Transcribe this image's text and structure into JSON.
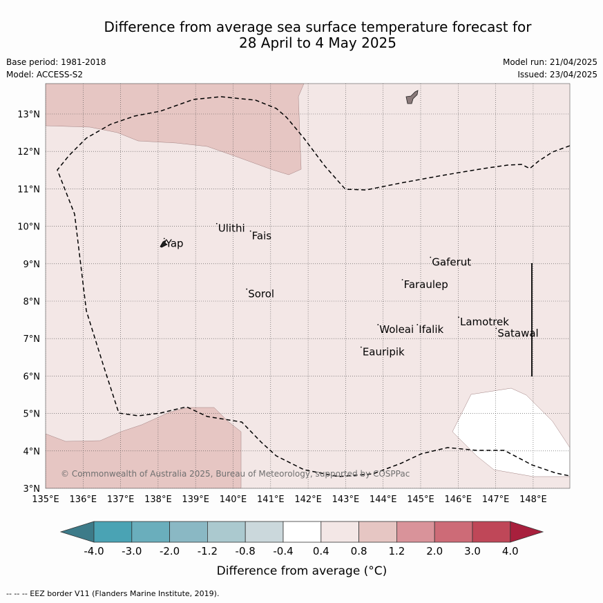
{
  "title_line1": "Difference from average sea surface temperature forecast for",
  "title_line2": "28 April to 4 May 2025",
  "base_period": "Base period: 1981-2018",
  "model": "Model: ACCESS-S2",
  "model_run": "Model run: 21/04/2025",
  "issued": "Issued: 23/04/2025",
  "copyright": "© Commonwealth of Australia 2025, Bureau of Meteorology, supported by COSPPac",
  "footer_note": "-- -- -- EEZ border V11 (Flanders Marine Institute, 2019).",
  "colors": {
    "anom_0_4_0_8": "#f3e7e6",
    "anom_0_8_1_2": "#e6c6c3",
    "neutral": "#ffffff",
    "land": "#8a7a7a"
  },
  "map": {
    "lon_range": [
      135,
      149
    ],
    "lat_range": [
      3,
      13.8
    ],
    "lon_ticks": [
      "135°E",
      "136°E",
      "137°E",
      "138°E",
      "139°E",
      "140°E",
      "141°E",
      "142°E",
      "143°E",
      "144°E",
      "145°E",
      "146°E",
      "147°E",
      "148°E"
    ],
    "lat_ticks": [
      "3°N",
      "4°N",
      "5°N",
      "6°N",
      "7°N",
      "8°N",
      "9°N",
      "10°N",
      "11°N",
      "12°N",
      "13°N"
    ],
    "places": [
      {
        "name": "Yap",
        "lon": 138.2,
        "lat": 9.45
      },
      {
        "name": "Ulithi",
        "lon": 139.6,
        "lat": 9.85
      },
      {
        "name": "Fais",
        "lon": 140.5,
        "lat": 9.65
      },
      {
        "name": "Sorol",
        "lon": 140.4,
        "lat": 8.1
      },
      {
        "name": "Gaferut",
        "lon": 145.3,
        "lat": 8.95
      },
      {
        "name": "Faraulep",
        "lon": 144.55,
        "lat": 8.35
      },
      {
        "name": "Woleai",
        "lon": 143.9,
        "lat": 7.15
      },
      {
        "name": "Ifalik",
        "lon": 144.95,
        "lat": 7.15
      },
      {
        "name": "Lamotrek",
        "lon": 146.05,
        "lat": 7.35
      },
      {
        "name": "Satawal",
        "lon": 147.05,
        "lat": 7.05
      },
      {
        "name": "Eauripik",
        "lon": 143.45,
        "lat": 6.55
      }
    ]
  },
  "legend": {
    "ticks": [
      "-4.0",
      "-3.0",
      "-2.0",
      "-1.2",
      "-0.8",
      "-0.4",
      "0.4",
      "0.8",
      "1.2",
      "2.0",
      "3.0",
      "4.0"
    ],
    "colors": [
      "#3d7b89",
      "#4aa3b4",
      "#6aaebc",
      "#8ab8c4",
      "#abc9cf",
      "#cbd8dc",
      "#ffffff",
      "#f3e7e6",
      "#e6c6c3",
      "#d9939a",
      "#cd6b77",
      "#bf4758",
      "#a8203d"
    ],
    "label": "Difference from average (°C)"
  }
}
